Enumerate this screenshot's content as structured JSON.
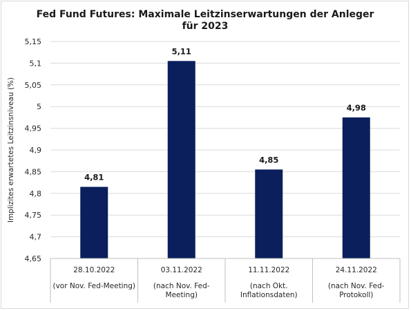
{
  "chart_data": {
    "type": "bar",
    "title_lines": [
      "Fed Fund Futures: Maximale Leitzinserwartungen der Anleger",
      "für 2023"
    ],
    "ylabel": "Implizites erwartetes Leitzinsniveau  (%)",
    "xlabel": "",
    "categories": [
      [
        "28.10.2022",
        "(vor Nov. Fed-Meeting)"
      ],
      [
        "03.11.2022",
        "(nach Nov. Fed-",
        "Meeting)"
      ],
      [
        "11.11.2022",
        "(nach Okt.",
        "Inflationsdaten)"
      ],
      [
        "24.11.2022",
        "(nach Nov. Fed-",
        "Protokoll)"
      ]
    ],
    "values": [
      4.815,
      5.105,
      4.855,
      4.975
    ],
    "data_labels": [
      "4,81",
      "5,11",
      "4,85",
      "4,98"
    ],
    "ylim": [
      4.65,
      5.15
    ],
    "yticks": [
      4.65,
      4.7,
      4.75,
      4.8,
      4.85,
      4.9,
      4.95,
      5,
      5.05,
      5.1,
      5.15
    ],
    "ytick_labels": [
      "4,65",
      "4,7",
      "4,75",
      "4,8",
      "4,85",
      "4,9",
      "4,95",
      "5",
      "5,05",
      "5,1",
      "5,15"
    ],
    "grid": true,
    "legend": "none",
    "colors": {
      "bar": "#0a1f5c",
      "grid": "#d9d9d9",
      "axis": "#bfbfbf"
    }
  }
}
